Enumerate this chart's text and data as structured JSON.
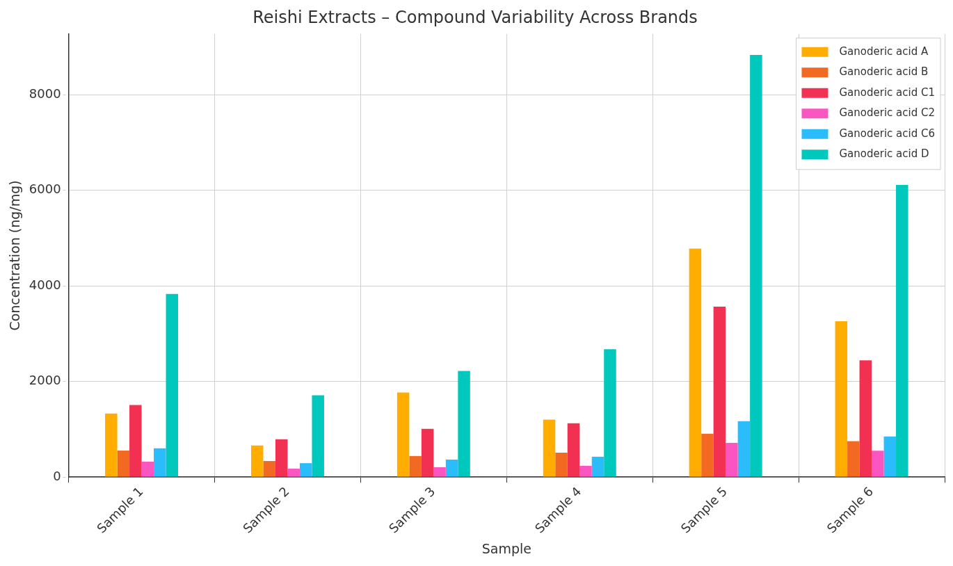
{
  "chart_data": {
    "type": "bar",
    "title": "Reishi Extracts – Compound Variability Across Brands",
    "xlabel": "Sample",
    "ylabel": "Concentration (ng/mg)",
    "categories": [
      "Sample 1",
      "Sample 2",
      "Sample 3",
      "Sample 4",
      "Sample 5",
      "Sample 6"
    ],
    "series": [
      {
        "name": "Ganoderic acid A",
        "color": "#ffad00",
        "values": [
          1330,
          660,
          1770,
          1200,
          4780,
          3260
        ]
      },
      {
        "name": "Ganoderic acid B",
        "color": "#f26a21",
        "values": [
          555,
          335,
          440,
          510,
          905,
          750
        ]
      },
      {
        "name": "Ganoderic acid C1",
        "color": "#f23051",
        "values": [
          1505,
          790,
          1010,
          1125,
          3565,
          2440
        ]
      },
      {
        "name": "Ganoderic acid C2",
        "color": "#fa55c0",
        "values": [
          320,
          175,
          205,
          235,
          715,
          550
        ]
      },
      {
        "name": "Ganoderic acid C6",
        "color": "#2bbcfc",
        "values": [
          600,
          290,
          365,
          425,
          1170,
          850
        ]
      },
      {
        "name": "Ganoderic acid D",
        "color": "#00c8bc",
        "values": [
          3830,
          1710,
          2220,
          2675,
          8830,
          6110
        ]
      }
    ],
    "ylim": [
      0,
      9270
    ],
    "yticks": [
      0,
      2000,
      4000,
      6000,
      8000
    ],
    "grid": true,
    "legend": "top right"
  }
}
